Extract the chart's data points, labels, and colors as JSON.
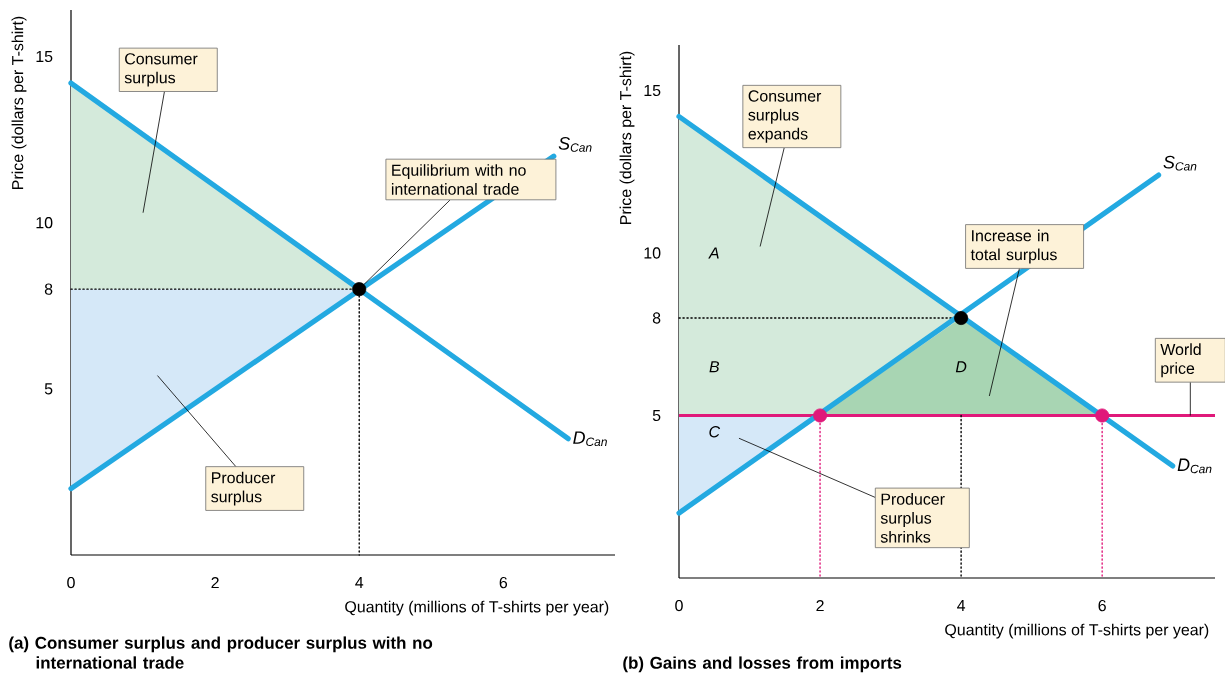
{
  "chart_data": [
    {
      "type": "line",
      "title": "(a) Consumer surplus and producer surplus with no international trade",
      "xlabel": "Quantity (millions of T-shirts per year)",
      "ylabel": "Price (dollars per T-shirt)",
      "xlim": [
        0,
        7.55
      ],
      "ylim": [
        0,
        16.4
      ],
      "xticks": [
        0,
        2,
        4,
        6
      ],
      "yticks": [
        5,
        8,
        10,
        15
      ],
      "series": [
        {
          "type": "area",
          "color": "#d4eadb",
          "x": [
            0,
            4,
            0
          ],
          "values": [
            14.2,
            8,
            8
          ]
        },
        {
          "type": "area",
          "color": "#d5e8f8",
          "x": [
            0,
            4,
            0
          ],
          "values": [
            8,
            8,
            2
          ]
        },
        {
          "type": "line",
          "color": "#000000",
          "line_style": "dotted",
          "x": [
            0,
            4,
            4
          ],
          "values": [
            8,
            8,
            0
          ]
        },
        {
          "type": "line",
          "name": "D$_{Can}$",
          "color": "#23a9e1",
          "x": [
            0,
            6.9
          ],
          "values": [
            14.2,
            3.5
          ]
        },
        {
          "type": "line",
          "name": "S$_{Can}$",
          "color": "#23a9e1",
          "x": [
            0,
            6.7
          ],
          "values": [
            2,
            12.0
          ]
        },
        {
          "type": "scatter",
          "color": "#000000",
          "marker": "circle",
          "x": [
            4
          ],
          "values": [
            8
          ]
        }
      ],
      "annotations": [
        "Consumer surplus",
        {
          "text": "Equilibrium with no international trade",
          "x": 4,
          "y": 8
        },
        "Producer surplus"
      ]
    },
    {
      "type": "line",
      "title": "(b) Gains and losses from imports",
      "xlabel": "Quantity (millions of T-shirts per year)",
      "ylabel": "Price (dollars per T-shirt)",
      "xlim": [
        0,
        7.6
      ],
      "ylim": [
        0,
        16.4
      ],
      "xticks": [
        0,
        2,
        4,
        6
      ],
      "yticks": [
        5,
        8,
        10,
        15
      ],
      "series": [
        {
          "type": "area",
          "color": "#d4eadb",
          "x": [
            0,
            6,
            0
          ],
          "values": [
            14.2,
            5,
            5
          ]
        },
        {
          "type": "area",
          "color": "#d5e8f8",
          "x": [
            0,
            2,
            0
          ],
          "values": [
            5,
            5,
            2
          ]
        },
        {
          "type": "area",
          "color": "#a8d5b3",
          "x": [
            2,
            4,
            6
          ],
          "values": [
            5,
            8,
            5
          ]
        },
        {
          "type": "line",
          "color": "#000000",
          "line_style": "dotted",
          "x": [
            0,
            4
          ],
          "values": [
            8,
            8
          ]
        },
        {
          "type": "line",
          "color": "#000000",
          "line_style": "dotted",
          "x": [
            4,
            4
          ],
          "values": [
            5,
            0
          ]
        },
        {
          "type": "line",
          "color": "#e0197a",
          "line_style": "dotted",
          "x": [
            2,
            2
          ],
          "values": [
            5,
            0
          ]
        },
        {
          "type": "line",
          "color": "#e0197a",
          "line_style": "dotted",
          "x": [
            6,
            6
          ],
          "values": [
            5,
            0
          ]
        },
        {
          "type": "line",
          "name": "D$_{Can}$",
          "color": "#23a9e1",
          "x": [
            0,
            7.0
          ],
          "values": [
            14.2,
            3.45
          ]
        },
        {
          "type": "line",
          "name": "S$_{Can}$",
          "color": "#23a9e1",
          "x": [
            0,
            6.8
          ],
          "values": [
            2,
            12.4
          ]
        },
        {
          "type": "scatter",
          "color": "#000000",
          "marker": "circle",
          "x": [
            4
          ],
          "values": [
            8
          ]
        },
        {
          "type": "scatter",
          "color": "#e0197a",
          "marker": "circle",
          "x": [
            2,
            6
          ],
          "values": [
            5,
            5
          ]
        }
      ],
      "ref_lines": [
        {
          "axis": "y",
          "value": 5,
          "label": "World price",
          "color": "#e0197a",
          "line_style": "solid"
        }
      ],
      "annotations": [
        "Consumer surplus expands",
        "Increase in total surplus",
        "Producer surplus shrinks",
        "A",
        "B",
        "C",
        "D"
      ]
    }
  ]
}
